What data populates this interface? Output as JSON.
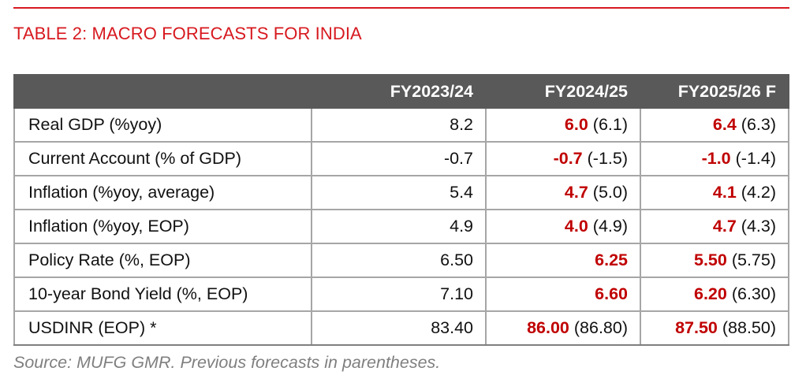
{
  "colors": {
    "accent": "#d7191f",
    "header_bg": "#595959",
    "new_value": "#c00000"
  },
  "title": "TABLE 2: MACRO FORECASTS FOR INDIA",
  "table": {
    "headers": [
      "",
      "FY2023/24",
      "FY2024/25",
      "FY2025/26 F"
    ],
    "rows": [
      {
        "label": "Real GDP (%yoy)",
        "fy2324": "8.2",
        "fy2425_new": "6.0",
        "fy2425_prev": "(6.1)",
        "fy2526_new": "6.4",
        "fy2526_prev": "(6.3)"
      },
      {
        "label": "Current Account (% of GDP)",
        "fy2324": "-0.7",
        "fy2425_new": "-0.7",
        "fy2425_prev": "(-1.5)",
        "fy2526_new": "-1.0",
        "fy2526_prev": "(-1.4)"
      },
      {
        "label": "Inflation (%yoy, average)",
        "fy2324": "5.4",
        "fy2425_new": "4.7",
        "fy2425_prev": "(5.0)",
        "fy2526_new": "4.1",
        "fy2526_prev": "(4.2)"
      },
      {
        "label": "Inflation (%yoy, EOP)",
        "fy2324": "4.9",
        "fy2425_new": "4.0",
        "fy2425_prev": "(4.9)",
        "fy2526_new": "4.7",
        "fy2526_prev": "(4.3)"
      },
      {
        "label": "Policy Rate (%, EOP)",
        "fy2324": "6.50",
        "fy2425_new": "6.25",
        "fy2425_prev": "",
        "fy2526_new": "5.50",
        "fy2526_prev": "(5.75)"
      },
      {
        "label": "10-year Bond Yield (%, EOP)",
        "fy2324": "7.10",
        "fy2425_new": "6.60",
        "fy2425_prev": "",
        "fy2526_new": "6.20",
        "fy2526_prev": "(6.30)"
      },
      {
        "label": "USDINR (EOP) *",
        "fy2324": "83.40",
        "fy2425_new": "86.00",
        "fy2425_prev": "(86.80)",
        "fy2526_new": "87.50",
        "fy2526_prev": "(88.50)"
      }
    ]
  },
  "source": "Source: MUFG GMR. Previous forecasts in parentheses."
}
